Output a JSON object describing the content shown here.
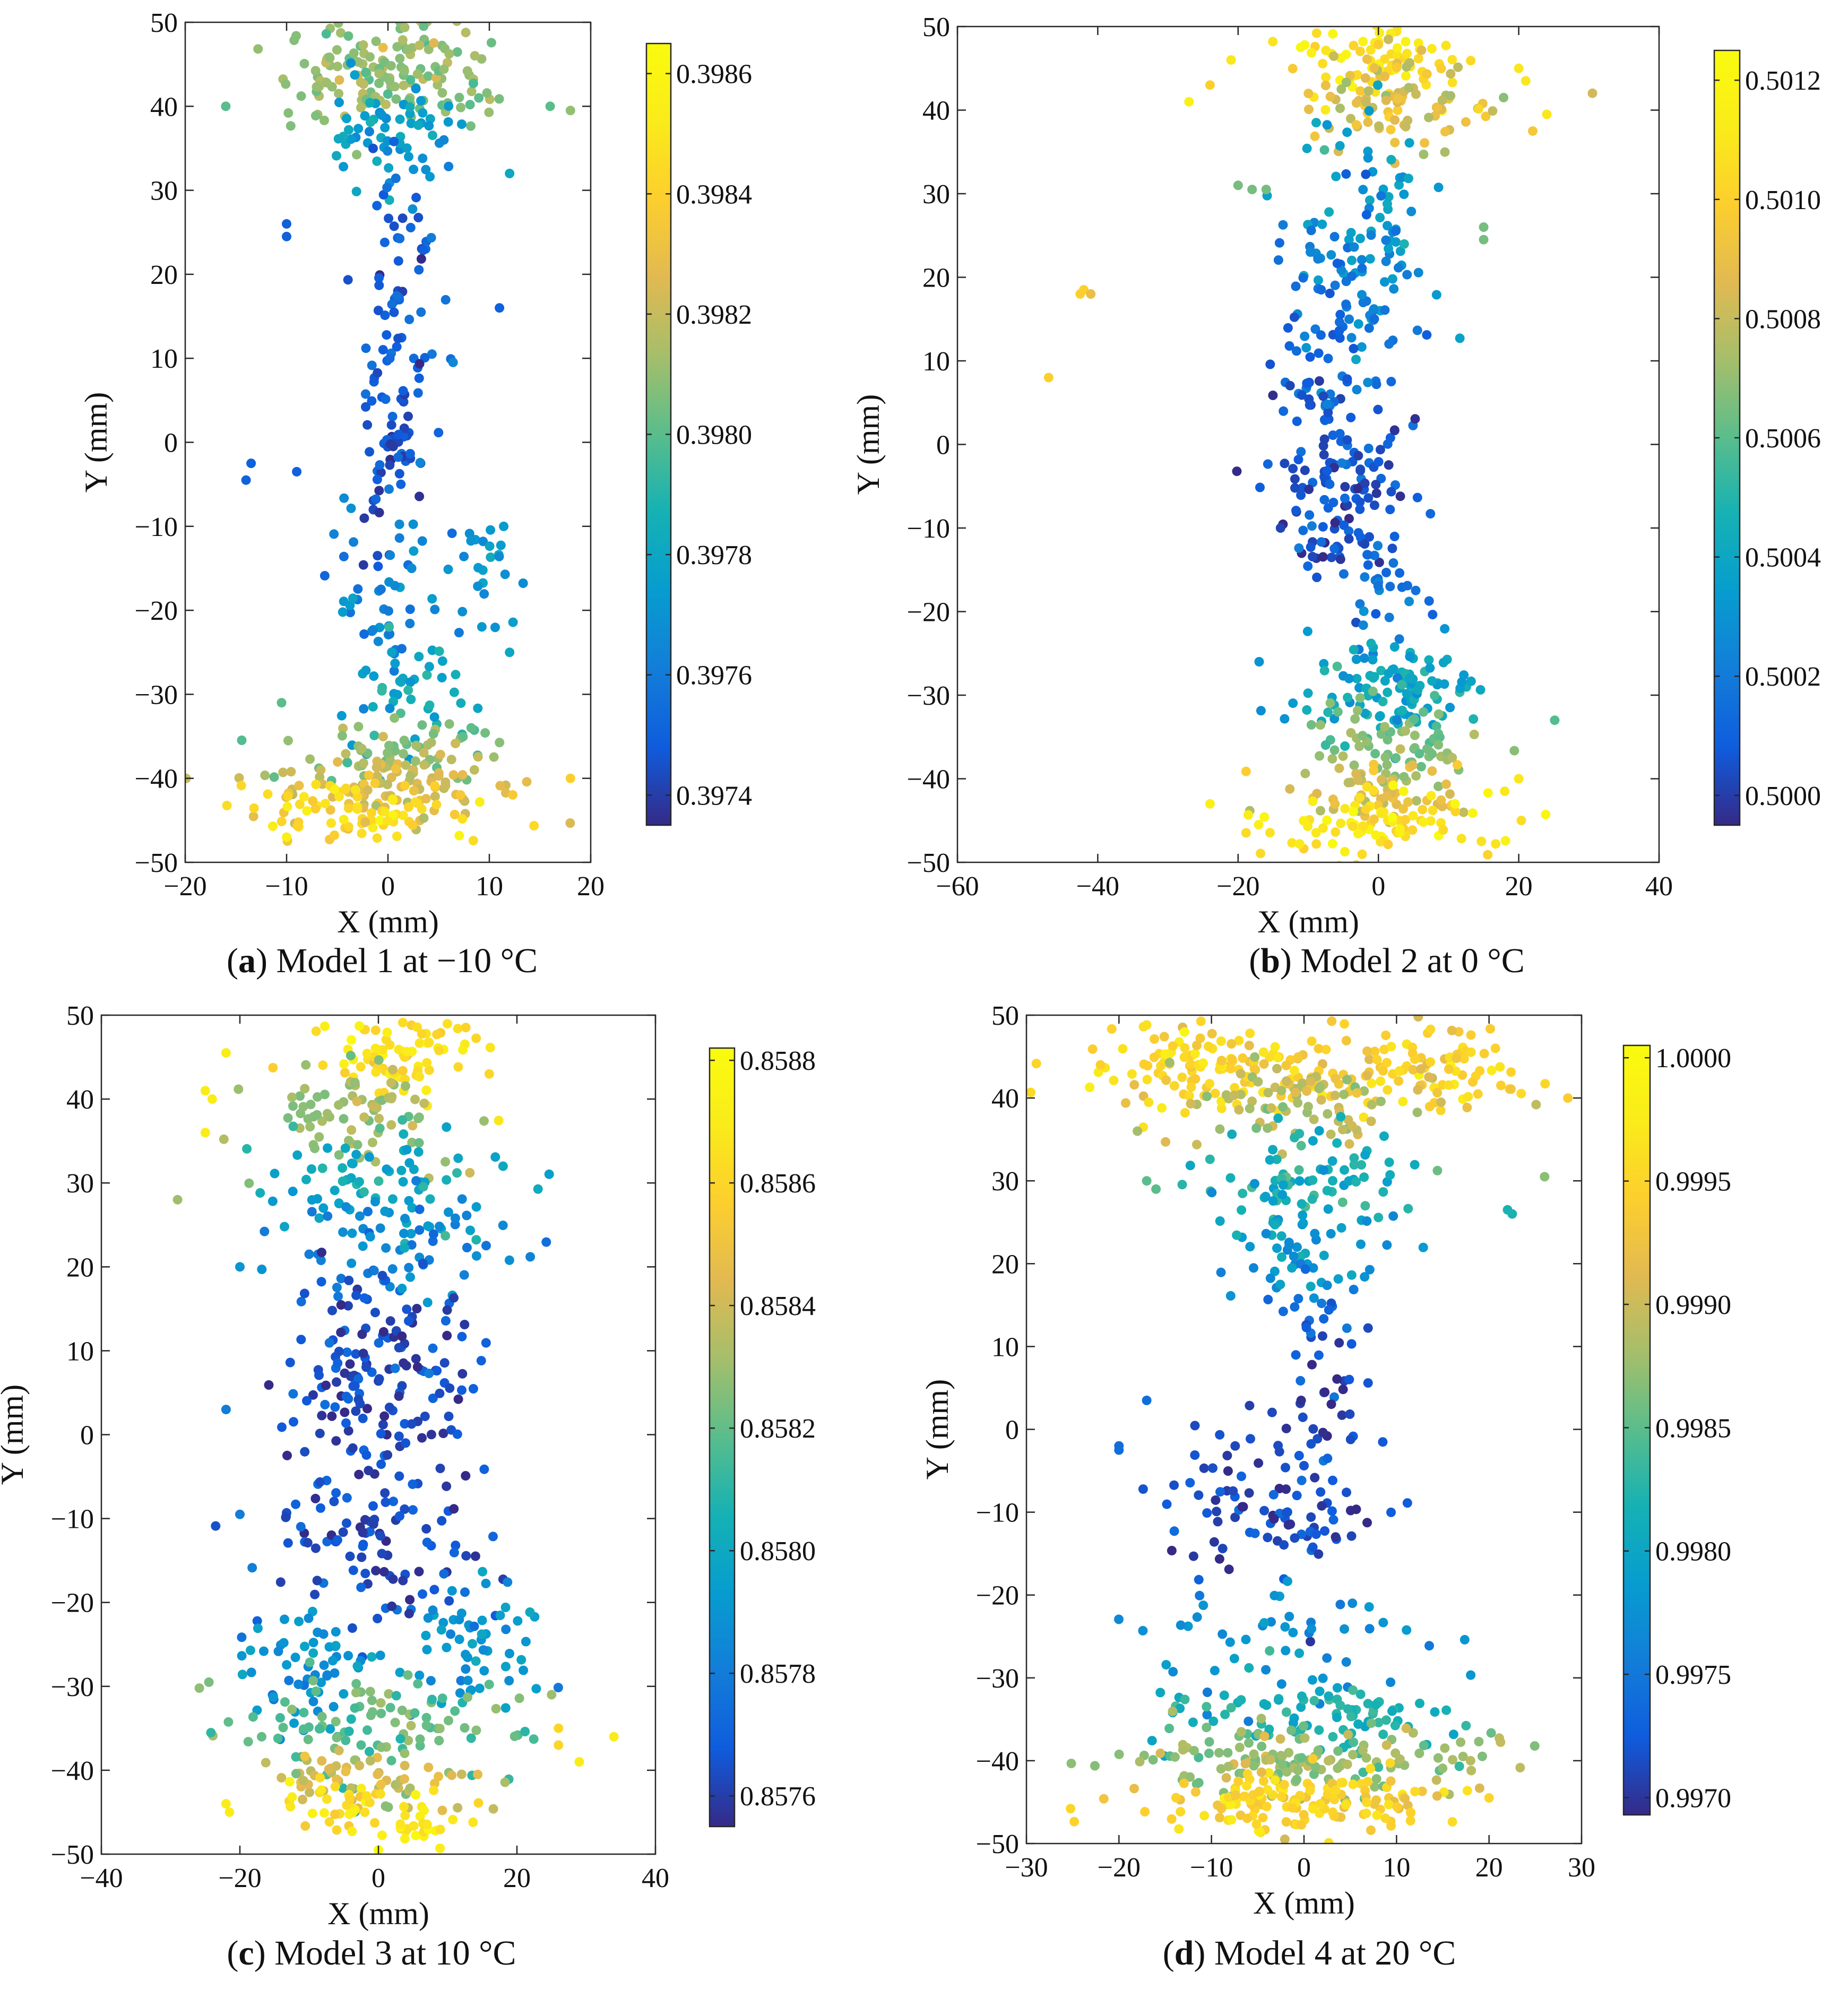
{
  "chart_data": [
    {
      "type": "scatter",
      "panel_label": "a",
      "caption": "Model 1 at −10 °C",
      "xlabel": "X (mm)",
      "ylabel": "Y (mm)",
      "xlim": [
        -20,
        20
      ],
      "ylim": [
        -50,
        50
      ],
      "xticks": [
        -20,
        -10,
        0,
        10,
        20
      ],
      "yticks": [
        -50,
        -40,
        -30,
        -20,
        -10,
        0,
        10,
        20,
        30,
        40,
        50
      ],
      "xtick_labels": [
        "−20",
        "−10",
        "0",
        "10",
        "20"
      ],
      "ytick_labels": [
        "−50",
        "−40",
        "−30",
        "−20",
        "−10",
        "0",
        "10",
        "20",
        "30",
        "40",
        "50"
      ],
      "colorbar": {
        "min": 0.39735,
        "max": 0.39865,
        "ticks": [
          0.3974,
          0.3976,
          0.3978,
          0.398,
          0.3982,
          0.3984,
          0.3986
        ],
        "tick_labels": [
          "0.3974",
          "0.3976",
          "0.3978",
          "0.3980",
          "0.3982",
          "0.3984",
          "0.3986"
        ]
      },
      "clusters": [
        {
          "x": 0,
          "y": 44,
          "sx": 5,
          "sy": 3,
          "n": 160,
          "c": 0.3981
        },
        {
          "x": 0,
          "y": 37,
          "sx": 3,
          "sy": 3,
          "n": 60,
          "c": 0.39775
        },
        {
          "x": 1,
          "y": 20,
          "sx": 2,
          "sy": 9,
          "n": 60,
          "c": 0.3975
        },
        {
          "x": 0,
          "y": 0,
          "sx": 2,
          "sy": 6,
          "n": 60,
          "c": 0.39745
        },
        {
          "x": 0,
          "y": -18,
          "sx": 3,
          "sy": 6,
          "n": 50,
          "c": 0.39765
        },
        {
          "x": 9,
          "y": -15,
          "sx": 2,
          "sy": 3,
          "n": 25,
          "c": 0.3977
        },
        {
          "x": 1,
          "y": -30,
          "sx": 3,
          "sy": 4,
          "n": 40,
          "c": 0.3978
        },
        {
          "x": 0,
          "y": -37,
          "sx": 6,
          "sy": 2,
          "n": 70,
          "c": 0.3981
        },
        {
          "x": 1,
          "y": -41,
          "sx": 6,
          "sy": 2,
          "n": 90,
          "c": 0.39825
        },
        {
          "x": -2,
          "y": -44,
          "sx": 6,
          "sy": 2,
          "n": 80,
          "c": 0.39845
        }
      ],
      "points": [
        {
          "x": -16,
          "y": 40,
          "c": 0.398
        },
        {
          "x": 18,
          "y": 39.5,
          "c": 0.3981
        },
        {
          "x": 16,
          "y": 40,
          "c": 0.398
        },
        {
          "x": 12,
          "y": 32,
          "c": 0.3978
        },
        {
          "x": -10,
          "y": 26,
          "c": 0.3975
        },
        {
          "x": -10,
          "y": 24.5,
          "c": 0.3975
        },
        {
          "x": -13.5,
          "y": -2.5,
          "c": 0.3975
        },
        {
          "x": -14,
          "y": -4.5,
          "c": 0.3975
        },
        {
          "x": -9,
          "y": -3.5,
          "c": 0.3975
        },
        {
          "x": 11,
          "y": 16,
          "c": 0.3975
        },
        {
          "x": 18,
          "y": -40,
          "c": 0.3984
        },
        {
          "x": -10.5,
          "y": -31,
          "c": 0.398
        },
        {
          "x": 12,
          "y": -25,
          "c": 0.3978
        },
        {
          "x": -10,
          "y": -47,
          "c": 0.39855
        }
      ]
    },
    {
      "type": "scatter",
      "panel_label": "b",
      "caption": "Model 2 at 0 °C",
      "xlabel": "X (mm)",
      "ylabel": "Y (mm)",
      "xlim": [
        -60,
        40
      ],
      "ylim": [
        -50,
        50
      ],
      "xticks": [
        -60,
        -40,
        -20,
        0,
        20,
        40
      ],
      "yticks": [
        -50,
        -40,
        -30,
        -20,
        -10,
        0,
        10,
        20,
        30,
        40,
        50
      ],
      "xtick_labels": [
        "−60",
        "−40",
        "−20",
        "0",
        "20",
        "40"
      ],
      "ytick_labels": [
        "−50",
        "−40",
        "−30",
        "−20",
        "−10",
        "0",
        "10",
        "20",
        "30",
        "40",
        "50"
      ],
      "colorbar": {
        "min": 0.49995,
        "max": 0.50125,
        "ticks": [
          0.5,
          0.5002,
          0.5004,
          0.5006,
          0.5008,
          0.501,
          0.5012
        ],
        "tick_labels": [
          "0.5000",
          "0.5002",
          "0.5004",
          "0.5006",
          "0.5008",
          "0.5010",
          "0.5012"
        ]
      },
      "clusters": [
        {
          "x": 0,
          "y": 46,
          "sx": 5,
          "sy": 2.5,
          "n": 70,
          "c": 0.5011
        },
        {
          "x": 2,
          "y": 41,
          "sx": 8,
          "sy": 3,
          "n": 90,
          "c": 0.50085
        },
        {
          "x": -2,
          "y": 28,
          "sx": 6,
          "sy": 6,
          "n": 60,
          "c": 0.50035
        },
        {
          "x": -5,
          "y": 18,
          "sx": 5,
          "sy": 6,
          "n": 70,
          "c": 0.5002
        },
        {
          "x": -6,
          "y": 5,
          "sx": 5,
          "sy": 6,
          "n": 80,
          "c": 0.5001
        },
        {
          "x": -5,
          "y": -8,
          "sx": 5,
          "sy": 4,
          "n": 90,
          "c": 0.50005
        },
        {
          "x": 0,
          "y": -18,
          "sx": 3,
          "sy": 4,
          "n": 30,
          "c": 0.5002
        },
        {
          "x": 2,
          "y": -29,
          "sx": 6,
          "sy": 3,
          "n": 110,
          "c": 0.5004
        },
        {
          "x": 2,
          "y": -36,
          "sx": 7,
          "sy": 2.5,
          "n": 70,
          "c": 0.50065
        },
        {
          "x": 0,
          "y": -41,
          "sx": 8,
          "sy": 2,
          "n": 60,
          "c": 0.50085
        },
        {
          "x": 0,
          "y": -45.5,
          "sx": 8,
          "sy": 2,
          "n": 90,
          "c": 0.5011
        }
      ],
      "points": [
        {
          "x": -42,
          "y": 18.5,
          "c": 0.501
        },
        {
          "x": -41,
          "y": 18,
          "c": 0.5009
        },
        {
          "x": -42.5,
          "y": 18,
          "c": 0.501
        },
        {
          "x": -47,
          "y": 8,
          "c": 0.501
        },
        {
          "x": 24,
          "y": 39.5,
          "c": 0.5011
        },
        {
          "x": 22,
          "y": 37.5,
          "c": 0.50095
        },
        {
          "x": 20,
          "y": 45,
          "c": 0.5011
        },
        {
          "x": 21,
          "y": 43.5,
          "c": 0.5011
        },
        {
          "x": -27,
          "y": 41,
          "c": 0.50115
        },
        {
          "x": -21,
          "y": 46,
          "c": 0.5011
        },
        {
          "x": -24,
          "y": 43,
          "c": 0.501
        },
        {
          "x": -20,
          "y": 31,
          "c": 0.50065
        },
        {
          "x": -18,
          "y": 30.5,
          "c": 0.50065
        },
        {
          "x": -16,
          "y": 30.5,
          "c": 0.50065
        },
        {
          "x": 15,
          "y": 26,
          "c": 0.50065
        },
        {
          "x": 15,
          "y": 24.5,
          "c": 0.50065
        },
        {
          "x": -24,
          "y": -43,
          "c": 0.50115
        },
        {
          "x": 20,
          "y": -40,
          "c": 0.5011
        },
        {
          "x": 18,
          "y": -41.5,
          "c": 0.5011
        },
        {
          "x": -17,
          "y": -26,
          "c": 0.5003
        }
      ]
    },
    {
      "type": "scatter",
      "panel_label": "c",
      "caption": "Model 3 at 10 °C",
      "xlabel": "X (mm)",
      "ylabel": "Y (mm)",
      "xlim": [
        -40,
        40
      ],
      "ylim": [
        -50,
        50
      ],
      "xticks": [
        -40,
        -20,
        0,
        20,
        40
      ],
      "yticks": [
        -50,
        -40,
        -30,
        -20,
        -10,
        0,
        10,
        20,
        30,
        40,
        50
      ],
      "xtick_labels": [
        "−40",
        "−20",
        "0",
        "20",
        "40"
      ],
      "ytick_labels": [
        "−50",
        "−40",
        "−30",
        "−20",
        "−10",
        "0",
        "10",
        "20",
        "30",
        "40",
        "50"
      ],
      "colorbar": {
        "min": 0.85755,
        "max": 0.85882,
        "ticks": [
          0.8576,
          0.8578,
          0.858,
          0.8582,
          0.8584,
          0.8586,
          0.8588
        ],
        "tick_labels": [
          "0.8576",
          "0.8578",
          "0.8580",
          "0.8582",
          "0.8584",
          "0.8586",
          "0.8588"
        ]
      },
      "clusters": [
        {
          "x": 2,
          "y": 45,
          "sx": 6,
          "sy": 2.5,
          "n": 80,
          "c": 0.85865
        },
        {
          "x": -3,
          "y": 38,
          "sx": 7,
          "sy": 3,
          "n": 80,
          "c": 0.8583
        },
        {
          "x": 0,
          "y": 30,
          "sx": 9,
          "sy": 3,
          "n": 60,
          "c": 0.858
        },
        {
          "x": 2,
          "y": 23,
          "sx": 9,
          "sy": 3,
          "n": 70,
          "c": 0.85785
        },
        {
          "x": 0,
          "y": 8,
          "sx": 7,
          "sy": 6,
          "n": 150,
          "c": 0.85765
        },
        {
          "x": 0,
          "y": -12,
          "sx": 8,
          "sy": 6,
          "n": 110,
          "c": 0.85765
        },
        {
          "x": -12,
          "y": -28,
          "sx": 5,
          "sy": 4,
          "n": 60,
          "c": 0.8579
        },
        {
          "x": 12,
          "y": -26,
          "sx": 5,
          "sy": 4,
          "n": 60,
          "c": 0.8579
        },
        {
          "x": 0,
          "y": -35,
          "sx": 10,
          "sy": 3,
          "n": 100,
          "c": 0.8582
        },
        {
          "x": -1,
          "y": -41,
          "sx": 9,
          "sy": 2,
          "n": 60,
          "c": 0.8584
        },
        {
          "x": -5,
          "y": -44,
          "sx": 5,
          "sy": 2,
          "n": 40,
          "c": 0.85865
        },
        {
          "x": 7,
          "y": -46.5,
          "sx": 3,
          "sy": 1.5,
          "n": 25,
          "c": 0.8587
        }
      ],
      "points": [
        {
          "x": -29,
          "y": 28,
          "c": 0.8583
        },
        {
          "x": -25,
          "y": 41,
          "c": 0.8587
        },
        {
          "x": -24,
          "y": 40,
          "c": 0.8587
        },
        {
          "x": -25,
          "y": 36,
          "c": 0.8587
        },
        {
          "x": -22,
          "y": 45.5,
          "c": 0.8587
        },
        {
          "x": -20,
          "y": 20,
          "c": 0.8579
        },
        {
          "x": -22,
          "y": 3,
          "c": 0.8578
        },
        {
          "x": -20,
          "y": -9.5,
          "c": 0.8578
        },
        {
          "x": -22,
          "y": -44,
          "c": 0.8587
        },
        {
          "x": -21.5,
          "y": -45,
          "c": 0.8587
        },
        {
          "x": 34,
          "y": -36,
          "c": 0.8587
        },
        {
          "x": 29,
          "y": -39,
          "c": 0.8587
        },
        {
          "x": 26,
          "y": -37,
          "c": 0.8586
        },
        {
          "x": 26,
          "y": -35,
          "c": 0.8586
        },
        {
          "x": 25,
          "y": -31,
          "c": 0.8583
        },
        {
          "x": 0,
          "y": -49.5,
          "c": 0.8588
        },
        {
          "x": 18,
          "y": 32,
          "c": 0.858
        },
        {
          "x": 16,
          "y": 43,
          "c": 0.8586
        }
      ]
    },
    {
      "type": "scatter",
      "panel_label": "d",
      "caption": "Model 4 at 20 °C",
      "xlabel": "X (mm)",
      "ylabel": "Y (mm)",
      "xlim": [
        -30,
        30
      ],
      "ylim": [
        -50,
        50
      ],
      "xticks": [
        -30,
        -20,
        -10,
        0,
        10,
        20,
        30
      ],
      "yticks": [
        -50,
        -40,
        -30,
        -20,
        -10,
        0,
        10,
        20,
        30,
        40,
        50
      ],
      "xtick_labels": [
        "−30",
        "−20",
        "−10",
        "0",
        "10",
        "20",
        "30"
      ],
      "ytick_labels": [
        "−50",
        "−40",
        "−30",
        "−20",
        "−10",
        "0",
        "10",
        "20",
        "30",
        "40",
        "50"
      ],
      "colorbar": {
        "min": 0.99693,
        "max": 1.00005,
        "ticks": [
          0.997,
          0.9975,
          0.998,
          0.9985,
          0.999,
          0.9995,
          1.0
        ],
        "tick_labels": [
          "0.9970",
          "0.9975",
          "0.9980",
          "0.9985",
          "0.9990",
          "0.9995",
          "1.0000"
        ]
      },
      "clusters": [
        {
          "x": -10,
          "y": 44,
          "sx": 7,
          "sy": 2.5,
          "n": 130,
          "c": 0.9995
        },
        {
          "x": 12,
          "y": 43,
          "sx": 5,
          "sy": 3,
          "n": 100,
          "c": 0.99945
        },
        {
          "x": 0,
          "y": 39,
          "sx": 7,
          "sy": 2.5,
          "n": 80,
          "c": 0.9989
        },
        {
          "x": 0,
          "y": 31,
          "sx": 6,
          "sy": 3,
          "n": 70,
          "c": 0.9982
        },
        {
          "x": 0,
          "y": 23,
          "sx": 5,
          "sy": 4,
          "n": 60,
          "c": 0.99785
        },
        {
          "x": 2,
          "y": 13,
          "sx": 2,
          "sy": 3,
          "n": 25,
          "c": 0.9973
        },
        {
          "x": 2,
          "y": 3,
          "sx": 2,
          "sy": 3,
          "n": 20,
          "c": 0.997
        },
        {
          "x": -3,
          "y": -10,
          "sx": 6,
          "sy": 5,
          "n": 100,
          "c": 0.99715
        },
        {
          "x": -1,
          "y": -25,
          "sx": 7,
          "sy": 4,
          "n": 50,
          "c": 0.99775
        },
        {
          "x": 0,
          "y": -35,
          "sx": 9,
          "sy": 2.5,
          "n": 90,
          "c": 0.9982
        },
        {
          "x": 0,
          "y": -40,
          "sx": 9,
          "sy": 2,
          "n": 140,
          "c": 0.99875
        },
        {
          "x": 0,
          "y": -45,
          "sx": 9,
          "sy": 2,
          "n": 150,
          "c": 0.99945
        }
      ],
      "points": [
        {
          "x": -20,
          "y": -2,
          "c": 0.9974
        },
        {
          "x": -20,
          "y": -2.5,
          "c": 0.9974
        },
        {
          "x": -17,
          "y": 3.5,
          "c": 0.9974
        },
        {
          "x": 26,
          "y": 30.5,
          "c": 0.9987
        },
        {
          "x": 22,
          "y": 26.5,
          "c": 0.9982
        },
        {
          "x": 22.5,
          "y": 26,
          "c": 0.9982
        },
        {
          "x": -17,
          "y": 30,
          "c": 0.9985
        },
        {
          "x": -16,
          "y": 29,
          "c": 0.9985
        },
        {
          "x": -18,
          "y": 36,
          "c": 0.9988
        },
        {
          "x": -22,
          "y": 44,
          "c": 0.99945
        },
        {
          "x": 20,
          "y": -44.5,
          "c": 0.9995
        },
        {
          "x": 18,
          "y": -40,
          "c": 0.9989
        }
      ]
    }
  ]
}
